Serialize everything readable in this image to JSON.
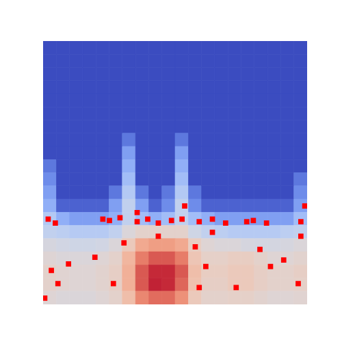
{
  "chart_data": {
    "type": "heatmap",
    "tick_labels": false,
    "xlim": [
      0,
      20
    ],
    "ylim": [
      0,
      20
    ],
    "zlim": [
      0,
      1
    ],
    "cells": [
      [
        0,
        0,
        0,
        0,
        0,
        0,
        0,
        0,
        0,
        0,
        0,
        0,
        0,
        0,
        0,
        0,
        0,
        0,
        0,
        0
      ],
      [
        0,
        0,
        0,
        0,
        0,
        0,
        0,
        0,
        0,
        0,
        0,
        0,
        0,
        0,
        0,
        0,
        0,
        0,
        0,
        0
      ],
      [
        0,
        0,
        0,
        0,
        0,
        0,
        0,
        0,
        0,
        0,
        0,
        0,
        0,
        0,
        0,
        0,
        0,
        0,
        0,
        0
      ],
      [
        0,
        0,
        0,
        0,
        0,
        0,
        0,
        0,
        0,
        0,
        0,
        0,
        0,
        0,
        0,
        0,
        0,
        0,
        0,
        0
      ],
      [
        0,
        0,
        0,
        0,
        0,
        0,
        0,
        0,
        0,
        0,
        0,
        0,
        0,
        0,
        0,
        0,
        0,
        0,
        0,
        0
      ],
      [
        0,
        0,
        0,
        0,
        0,
        0,
        0,
        0,
        0,
        0,
        0,
        0,
        0,
        0,
        0,
        0,
        0,
        0,
        0,
        0
      ],
      [
        0,
        0,
        0,
        0,
        0,
        0,
        0,
        0,
        0,
        0,
        0,
        0,
        0,
        0,
        0,
        0,
        0,
        0,
        0,
        0
      ],
      [
        0,
        0,
        0,
        0,
        0,
        0,
        0.1,
        0,
        0,
        0,
        0.1,
        0,
        0,
        0,
        0,
        0,
        0,
        0,
        0,
        0
      ],
      [
        0,
        0,
        0,
        0,
        0,
        0,
        0.2,
        0,
        0,
        0,
        0.2,
        0,
        0,
        0,
        0,
        0,
        0,
        0,
        0,
        0
      ],
      [
        0.1,
        0,
        0,
        0,
        0,
        0,
        0.25,
        0,
        0,
        0,
        0.25,
        0,
        0,
        0,
        0,
        0,
        0,
        0,
        0,
        0
      ],
      [
        0.15,
        0,
        0,
        0,
        0,
        0,
        0.3,
        0,
        0,
        0,
        0.3,
        0,
        0,
        0,
        0,
        0,
        0,
        0,
        0,
        0.1
      ],
      [
        0.2,
        0,
        0,
        0,
        0,
        0.1,
        0.35,
        0.1,
        0,
        0.1,
        0.35,
        0.1,
        0,
        0,
        0,
        0,
        0,
        0,
        0,
        0.15
      ],
      [
        0.25,
        0.05,
        0.05,
        0.05,
        0.05,
        0.2,
        0.4,
        0.2,
        0.05,
        0.15,
        0.4,
        0.15,
        0.05,
        0.05,
        0.05,
        0.05,
        0.05,
        0.05,
        0.05,
        0.2
      ],
      [
        0.35,
        0.25,
        0.2,
        0.2,
        0.2,
        0.25,
        0.4,
        0.3,
        0.25,
        0.3,
        0.4,
        0.3,
        0.25,
        0.2,
        0.2,
        0.2,
        0.2,
        0.2,
        0.2,
        0.3
      ],
      [
        0.4,
        0.38,
        0.36,
        0.36,
        0.36,
        0.4,
        0.5,
        0.55,
        0.55,
        0.55,
        0.55,
        0.45,
        0.4,
        0.38,
        0.36,
        0.36,
        0.36,
        0.36,
        0.38,
        0.4
      ],
      [
        0.48,
        0.46,
        0.45,
        0.45,
        0.46,
        0.5,
        0.6,
        0.72,
        0.75,
        0.75,
        0.72,
        0.58,
        0.52,
        0.5,
        0.5,
        0.48,
        0.47,
        0.47,
        0.48,
        0.5
      ],
      [
        0.52,
        0.5,
        0.5,
        0.5,
        0.52,
        0.55,
        0.68,
        0.82,
        0.88,
        0.88,
        0.82,
        0.62,
        0.56,
        0.56,
        0.58,
        0.58,
        0.55,
        0.52,
        0.52,
        0.54
      ],
      [
        0.55,
        0.53,
        0.52,
        0.52,
        0.54,
        0.57,
        0.7,
        0.88,
        0.95,
        0.95,
        0.88,
        0.65,
        0.58,
        0.58,
        0.6,
        0.6,
        0.57,
        0.55,
        0.55,
        0.57
      ],
      [
        0.55,
        0.53,
        0.52,
        0.52,
        0.54,
        0.57,
        0.7,
        0.88,
        0.96,
        0.95,
        0.86,
        0.64,
        0.57,
        0.57,
        0.6,
        0.6,
        0.57,
        0.55,
        0.55,
        0.56
      ],
      [
        0.52,
        0.5,
        0.5,
        0.5,
        0.52,
        0.55,
        0.65,
        0.8,
        0.85,
        0.85,
        0.78,
        0.6,
        0.55,
        0.55,
        0.56,
        0.56,
        0.54,
        0.52,
        0.52,
        0.53
      ]
    ],
    "markers": {
      "color": "#ff0000",
      "x": [
        0.36,
        0.9,
        4.5,
        5.0,
        5.8,
        7.1,
        7.9,
        8.7,
        9.7,
        10.5,
        11.8,
        12.8,
        13.8,
        15.4,
        15.9,
        16.9,
        19.5,
        0.6,
        1.1,
        1.9,
        3.9,
        11.8,
        11.5,
        12.3,
        16.4,
        17.2,
        19.3,
        19.5,
        12.8,
        8.7,
        6.1,
        5.3,
        14.6,
        18.2,
        19.8,
        10.7,
        7.1,
        0.1
      ],
      "y": [
        13.5,
        13.8,
        13.5,
        13.6,
        13.4,
        13.7,
        13.5,
        13.8,
        13.6,
        13.5,
        13.7,
        13.5,
        13.8,
        13.7,
        13.6,
        13.8,
        13.7,
        17.4,
        18.4,
        16.9,
        16.4,
        18.7,
        15.6,
        17.1,
        15.8,
        17.1,
        18.4,
        14.8,
        14.5,
        14.8,
        15.3,
        18.4,
        18.7,
        16.6,
        12.5,
        12.5,
        13.0,
        19.5
      ]
    }
  }
}
